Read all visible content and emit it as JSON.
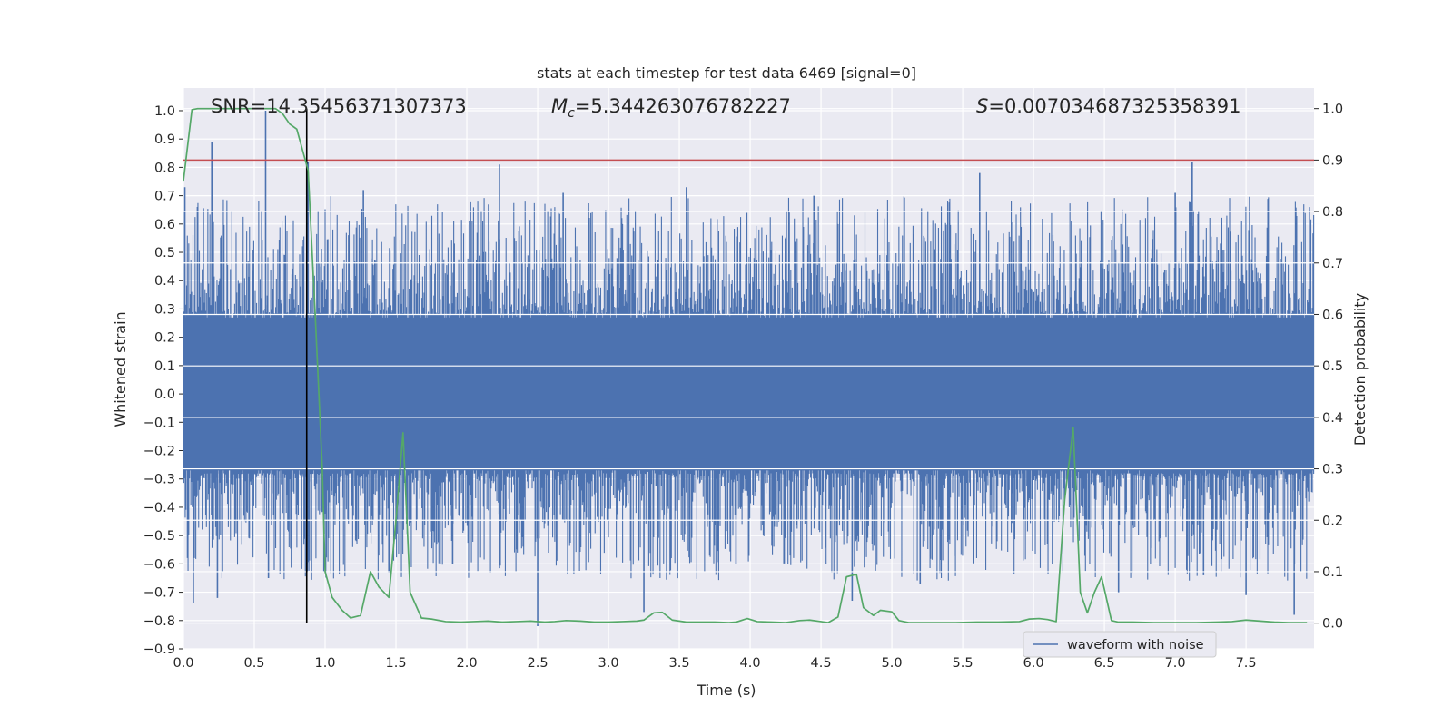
{
  "chart_data": {
    "type": "line",
    "title": "stats at each timestep for test data 6469 [signal=0]",
    "xlabel": "Time (s)",
    "ylabel": "Whitened strain",
    "y2label": "Detection probability",
    "xlim": [
      0.0,
      7.98
    ],
    "ylim": [
      -0.9,
      1.08
    ],
    "y2lim": [
      -0.05,
      1.04
    ],
    "x_ticks": [
      "0.0",
      "0.5",
      "1.0",
      "1.5",
      "2.0",
      "2.5",
      "3.0",
      "3.5",
      "4.0",
      "4.5",
      "5.0",
      "5.5",
      "6.0",
      "6.5",
      "7.0",
      "7.5"
    ],
    "y_ticks": [
      "1.0",
      "0.9",
      "0.8",
      "0.7",
      "0.6",
      "0.5",
      "0.4",
      "0.3",
      "0.2",
      "0.1",
      "0.0",
      "−0.1",
      "−0.2",
      "−0.3",
      "−0.4",
      "−0.5",
      "−0.6",
      "−0.7",
      "−0.8",
      "−0.9"
    ],
    "y2_ticks": [
      "1.0",
      "0.9",
      "0.8",
      "0.7",
      "0.6",
      "0.5",
      "0.4",
      "0.3",
      "0.2",
      "0.1",
      "0.0"
    ],
    "grid": true,
    "legend": {
      "position": "lower-right",
      "entries": [
        "waveform with noise"
      ]
    },
    "annotations": {
      "snr": "SNR=14.35456371307373",
      "mc_symbol": "M",
      "mc_sub": "c",
      "mc_value": "=5.344263076782227",
      "s_symbol": "S",
      "s_value": "=0.007034687325358391"
    },
    "threshold": {
      "value": 0.9,
      "axis": "right"
    },
    "marker_time": 0.87,
    "waveform": {
      "name": "waveform with noise",
      "n_samples": 1600,
      "band": 0.28,
      "upper_spikes": [
        [
          0.01,
          0.73
        ],
        [
          0.2,
          0.89
        ],
        [
          0.58,
          1.0
        ],
        [
          0.88,
          0.82
        ],
        [
          2.23,
          0.81
        ],
        [
          1.27,
          0.72
        ],
        [
          3.55,
          0.73
        ],
        [
          7.12,
          0.82
        ],
        [
          5.62,
          0.78
        ],
        [
          7.0,
          0.71
        ],
        [
          4.45,
          0.7
        ],
        [
          2.68,
          0.71
        ]
      ],
      "lower_spikes": [
        [
          0.07,
          -0.74
        ],
        [
          0.24,
          -0.72
        ],
        [
          0.6,
          -0.65
        ],
        [
          2.5,
          -0.82
        ],
        [
          1.45,
          -0.63
        ],
        [
          3.25,
          -0.77
        ],
        [
          4.72,
          -0.73
        ],
        [
          5.2,
          -0.67
        ],
        [
          6.6,
          -0.7
        ],
        [
          7.5,
          -0.71
        ],
        [
          7.84,
          -0.78
        ],
        [
          1.9,
          -0.6
        ],
        [
          3.9,
          -0.6
        ],
        [
          7.2,
          -0.64
        ]
      ]
    },
    "series": [
      {
        "name": "detection probability",
        "color": "#55a868",
        "x": [
          0.0,
          0.06,
          0.1,
          0.2,
          0.3,
          0.4,
          0.5,
          0.55,
          0.6,
          0.65,
          0.7,
          0.75,
          0.8,
          0.85,
          0.88,
          0.93,
          0.98,
          1.0,
          1.05,
          1.12,
          1.18,
          1.25,
          1.32,
          1.38,
          1.45,
          1.5,
          1.55,
          1.6,
          1.68,
          1.75,
          1.85,
          1.95,
          2.05,
          2.15,
          2.25,
          2.35,
          2.45,
          2.55,
          2.62,
          2.7,
          2.8,
          2.9,
          3.0,
          3.1,
          3.2,
          3.25,
          3.32,
          3.38,
          3.45,
          3.55,
          3.65,
          3.75,
          3.85,
          3.9,
          3.98,
          4.05,
          4.15,
          4.25,
          4.35,
          4.42,
          4.5,
          4.55,
          4.62,
          4.68,
          4.75,
          4.8,
          4.87,
          4.92,
          5.0,
          5.05,
          5.12,
          5.2,
          5.3,
          5.45,
          5.6,
          5.75,
          5.9,
          5.97,
          6.04,
          6.1,
          6.16,
          6.22,
          6.28,
          6.33,
          6.38,
          6.43,
          6.48,
          6.55,
          6.6,
          6.7,
          6.85,
          7.0,
          7.15,
          7.3,
          7.4,
          7.5,
          7.6,
          7.7,
          7.8,
          7.93
        ],
        "y": [
          0.86,
          0.998,
          1.0,
          1.0,
          1.0,
          1.0,
          1.0,
          1.0,
          1.0,
          1.0,
          0.99,
          0.97,
          0.96,
          0.91,
          0.88,
          0.6,
          0.3,
          0.1,
          0.05,
          0.025,
          0.01,
          0.015,
          0.1,
          0.07,
          0.05,
          0.2,
          0.37,
          0.06,
          0.01,
          0.008,
          0.003,
          0.002,
          0.003,
          0.004,
          0.002,
          0.003,
          0.004,
          0.002,
          0.003,
          0.005,
          0.004,
          0.002,
          0.002,
          0.003,
          0.004,
          0.006,
          0.02,
          0.021,
          0.006,
          0.002,
          0.002,
          0.002,
          0.001,
          0.002,
          0.009,
          0.003,
          0.002,
          0.001,
          0.005,
          0.006,
          0.003,
          0.001,
          0.012,
          0.09,
          0.095,
          0.03,
          0.015,
          0.025,
          0.022,
          0.005,
          0.001,
          0.001,
          0.001,
          0.001,
          0.002,
          0.002,
          0.003,
          0.008,
          0.009,
          0.007,
          0.003,
          0.24,
          0.38,
          0.06,
          0.02,
          0.06,
          0.09,
          0.005,
          0.002,
          0.002,
          0.001,
          0.001,
          0.001,
          0.002,
          0.003,
          0.006,
          0.004,
          0.002,
          0.001,
          0.001
        ]
      }
    ]
  }
}
